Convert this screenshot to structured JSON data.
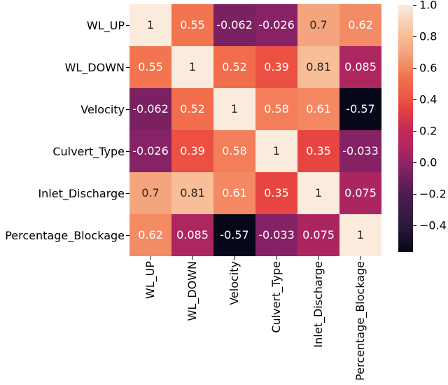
{
  "chart_data": {
    "type": "heatmap",
    "title": "",
    "variables": [
      "WL_UP",
      "WL_DOWN",
      "Velocity",
      "Culvert_Type",
      "Inlet_Discharge",
      "Percentage_Blockage"
    ],
    "matrix": [
      [
        1,
        0.55,
        -0.062,
        -0.026,
        0.7,
        0.62
      ],
      [
        0.55,
        1,
        0.52,
        0.39,
        0.81,
        0.085
      ],
      [
        -0.062,
        0.52,
        1,
        0.58,
        0.61,
        -0.57
      ],
      [
        -0.026,
        0.39,
        0.58,
        1,
        0.35,
        -0.033
      ],
      [
        0.7,
        0.81,
        0.61,
        0.35,
        1,
        0.075
      ],
      [
        0.62,
        0.085,
        -0.57,
        -0.033,
        0.075,
        1
      ]
    ],
    "vmin": -0.57,
    "vmax": 1.0,
    "legend_position": "right",
    "grid": false,
    "colorbar_ticks": [
      {
        "value": 1.0,
        "label": "1.0"
      },
      {
        "value": 0.8,
        "label": "0.8"
      },
      {
        "value": 0.6,
        "label": "0.6"
      },
      {
        "value": 0.4,
        "label": "0.4"
      },
      {
        "value": 0.2,
        "label": "0.2"
      },
      {
        "value": 0.0,
        "label": "0.0"
      },
      {
        "value": -0.2,
        "label": "−0.2"
      },
      {
        "value": -0.4,
        "label": "−0.4"
      }
    ],
    "colormap_stops": [
      {
        "t": 0.0,
        "color": "#060718"
      },
      {
        "t": 0.11,
        "color": "#2B1A3C"
      },
      {
        "t": 0.24,
        "color": "#4F1C52"
      },
      {
        "t": 0.36,
        "color": "#8E2368"
      },
      {
        "t": 0.42,
        "color": "#B0265F"
      },
      {
        "t": 0.5,
        "color": "#C62A56"
      },
      {
        "t": 0.59,
        "color": "#E84640"
      },
      {
        "t": 0.61,
        "color": "#EB4F43"
      },
      {
        "t": 0.71,
        "color": "#F2734E"
      },
      {
        "t": 0.81,
        "color": "#F5A67E"
      },
      {
        "t": 0.88,
        "color": "#F8BE98"
      },
      {
        "t": 1.0,
        "color": "#FAEBDD"
      }
    ],
    "annotation_colors": {
      "dark": "#262626",
      "light": "#ffffff"
    },
    "luminance_threshold": 0.408,
    "axis_color": "#000000",
    "background": "#ffffff"
  }
}
